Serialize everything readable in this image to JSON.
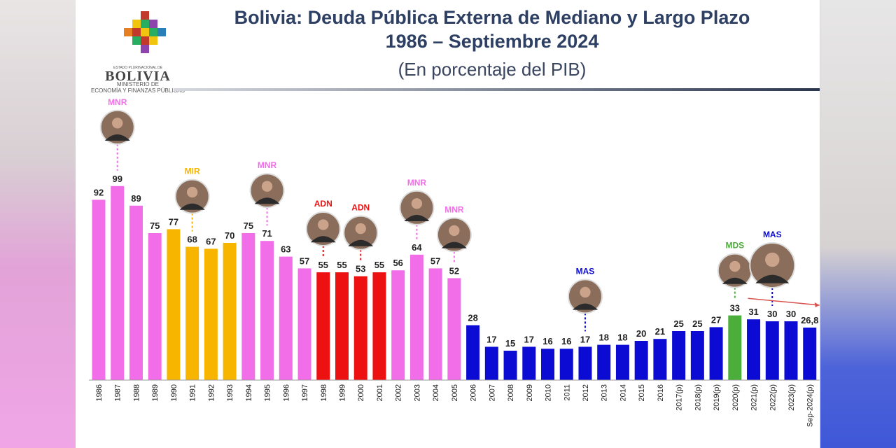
{
  "header": {
    "title_line1": "Bolivia: Deuda Pública Externa de Mediano y Largo Plazo",
    "title_line2": "1986 – Septiembre 2024",
    "subtitle": "(En porcentaje del PIB)"
  },
  "logo": {
    "small_text": "ESTADO PLURINACIONAL DE",
    "name": "BOLIVIA",
    "sub_line1": "MINISTERIO DE",
    "sub_line2": "ECONOMÍA Y FINANZAS PÚBLICAS"
  },
  "colors": {
    "MNR": "#f26ee8",
    "MIR": "#f7b500",
    "ADN": "#ee1111",
    "MAS": "#0b0bd4",
    "MDS": "#4cae3a",
    "title": "#2d3f63"
  },
  "chart_data": {
    "type": "bar",
    "title": "Bolivia: Deuda Pública Externa de Mediano y Largo Plazo",
    "subtitle": "(En porcentaje del PIB)",
    "categories": [
      "1986",
      "1987",
      "1988",
      "1989",
      "1990",
      "1991",
      "1992",
      "1993",
      "1994",
      "1995",
      "1996",
      "1997",
      "1998",
      "1999",
      "2000",
      "2001",
      "2002",
      "2003",
      "2004",
      "2005",
      "2006",
      "2007",
      "2008",
      "2009",
      "2010",
      "2011",
      "2012",
      "2013",
      "2014",
      "2015",
      "2016",
      "2017(p)",
      "2018(p)",
      "2019(p)",
      "2020(p)",
      "2021(p)",
      "2022(p)",
      "2023(p)",
      "Sep-2024(p)"
    ],
    "values": [
      92,
      99,
      89,
      75,
      77,
      68,
      67,
      70,
      75,
      71,
      63,
      57,
      55,
      55,
      53,
      55,
      56,
      64,
      57,
      52,
      28,
      17,
      15,
      17,
      16,
      16,
      17,
      18,
      18,
      20,
      21,
      25,
      25,
      27,
      33,
      31,
      30,
      30,
      26.8
    ],
    "value_labels": [
      "92",
      "99",
      "89",
      "75",
      "77",
      "68",
      "67",
      "70",
      "75",
      "71",
      "63",
      "57",
      "55",
      "55",
      "53",
      "55",
      "56",
      "64",
      "57",
      "52",
      "28",
      "17",
      "15",
      "17",
      "16",
      "16",
      "17",
      "18",
      "18",
      "20",
      "21",
      "25",
      "25",
      "27",
      "33",
      "31",
      "30",
      "30",
      "26,8"
    ],
    "parties": [
      "MNR",
      "MNR",
      "MNR",
      "MNR",
      "MIR",
      "MIR",
      "MIR",
      "MIR",
      "MNR",
      "MNR",
      "MNR",
      "MNR",
      "ADN",
      "ADN",
      "ADN",
      "ADN",
      "MNR",
      "MNR",
      "MNR",
      "MNR",
      "MAS",
      "MAS",
      "MAS",
      "MAS",
      "MAS",
      "MAS",
      "MAS",
      "MAS",
      "MAS",
      "MAS",
      "MAS",
      "MAS",
      "MAS",
      "MAS",
      "MDS",
      "MAS",
      "MAS",
      "MAS",
      "MAS"
    ],
    "annotations": [
      {
        "label": "MNR",
        "index": 1
      },
      {
        "label": "MIR",
        "index": 5
      },
      {
        "label": "MNR",
        "index": 9
      },
      {
        "label": "ADN",
        "index": 12
      },
      {
        "label": "ADN",
        "index": 14
      },
      {
        "label": "MNR",
        "index": 17
      },
      {
        "label": "MNR",
        "index": 19
      },
      {
        "label": "MAS",
        "index": 26
      },
      {
        "label": "MDS",
        "index": 34
      },
      {
        "label": "MAS",
        "index": 36
      }
    ],
    "ylim": [
      0,
      100
    ],
    "grid": false,
    "legend": "none"
  }
}
